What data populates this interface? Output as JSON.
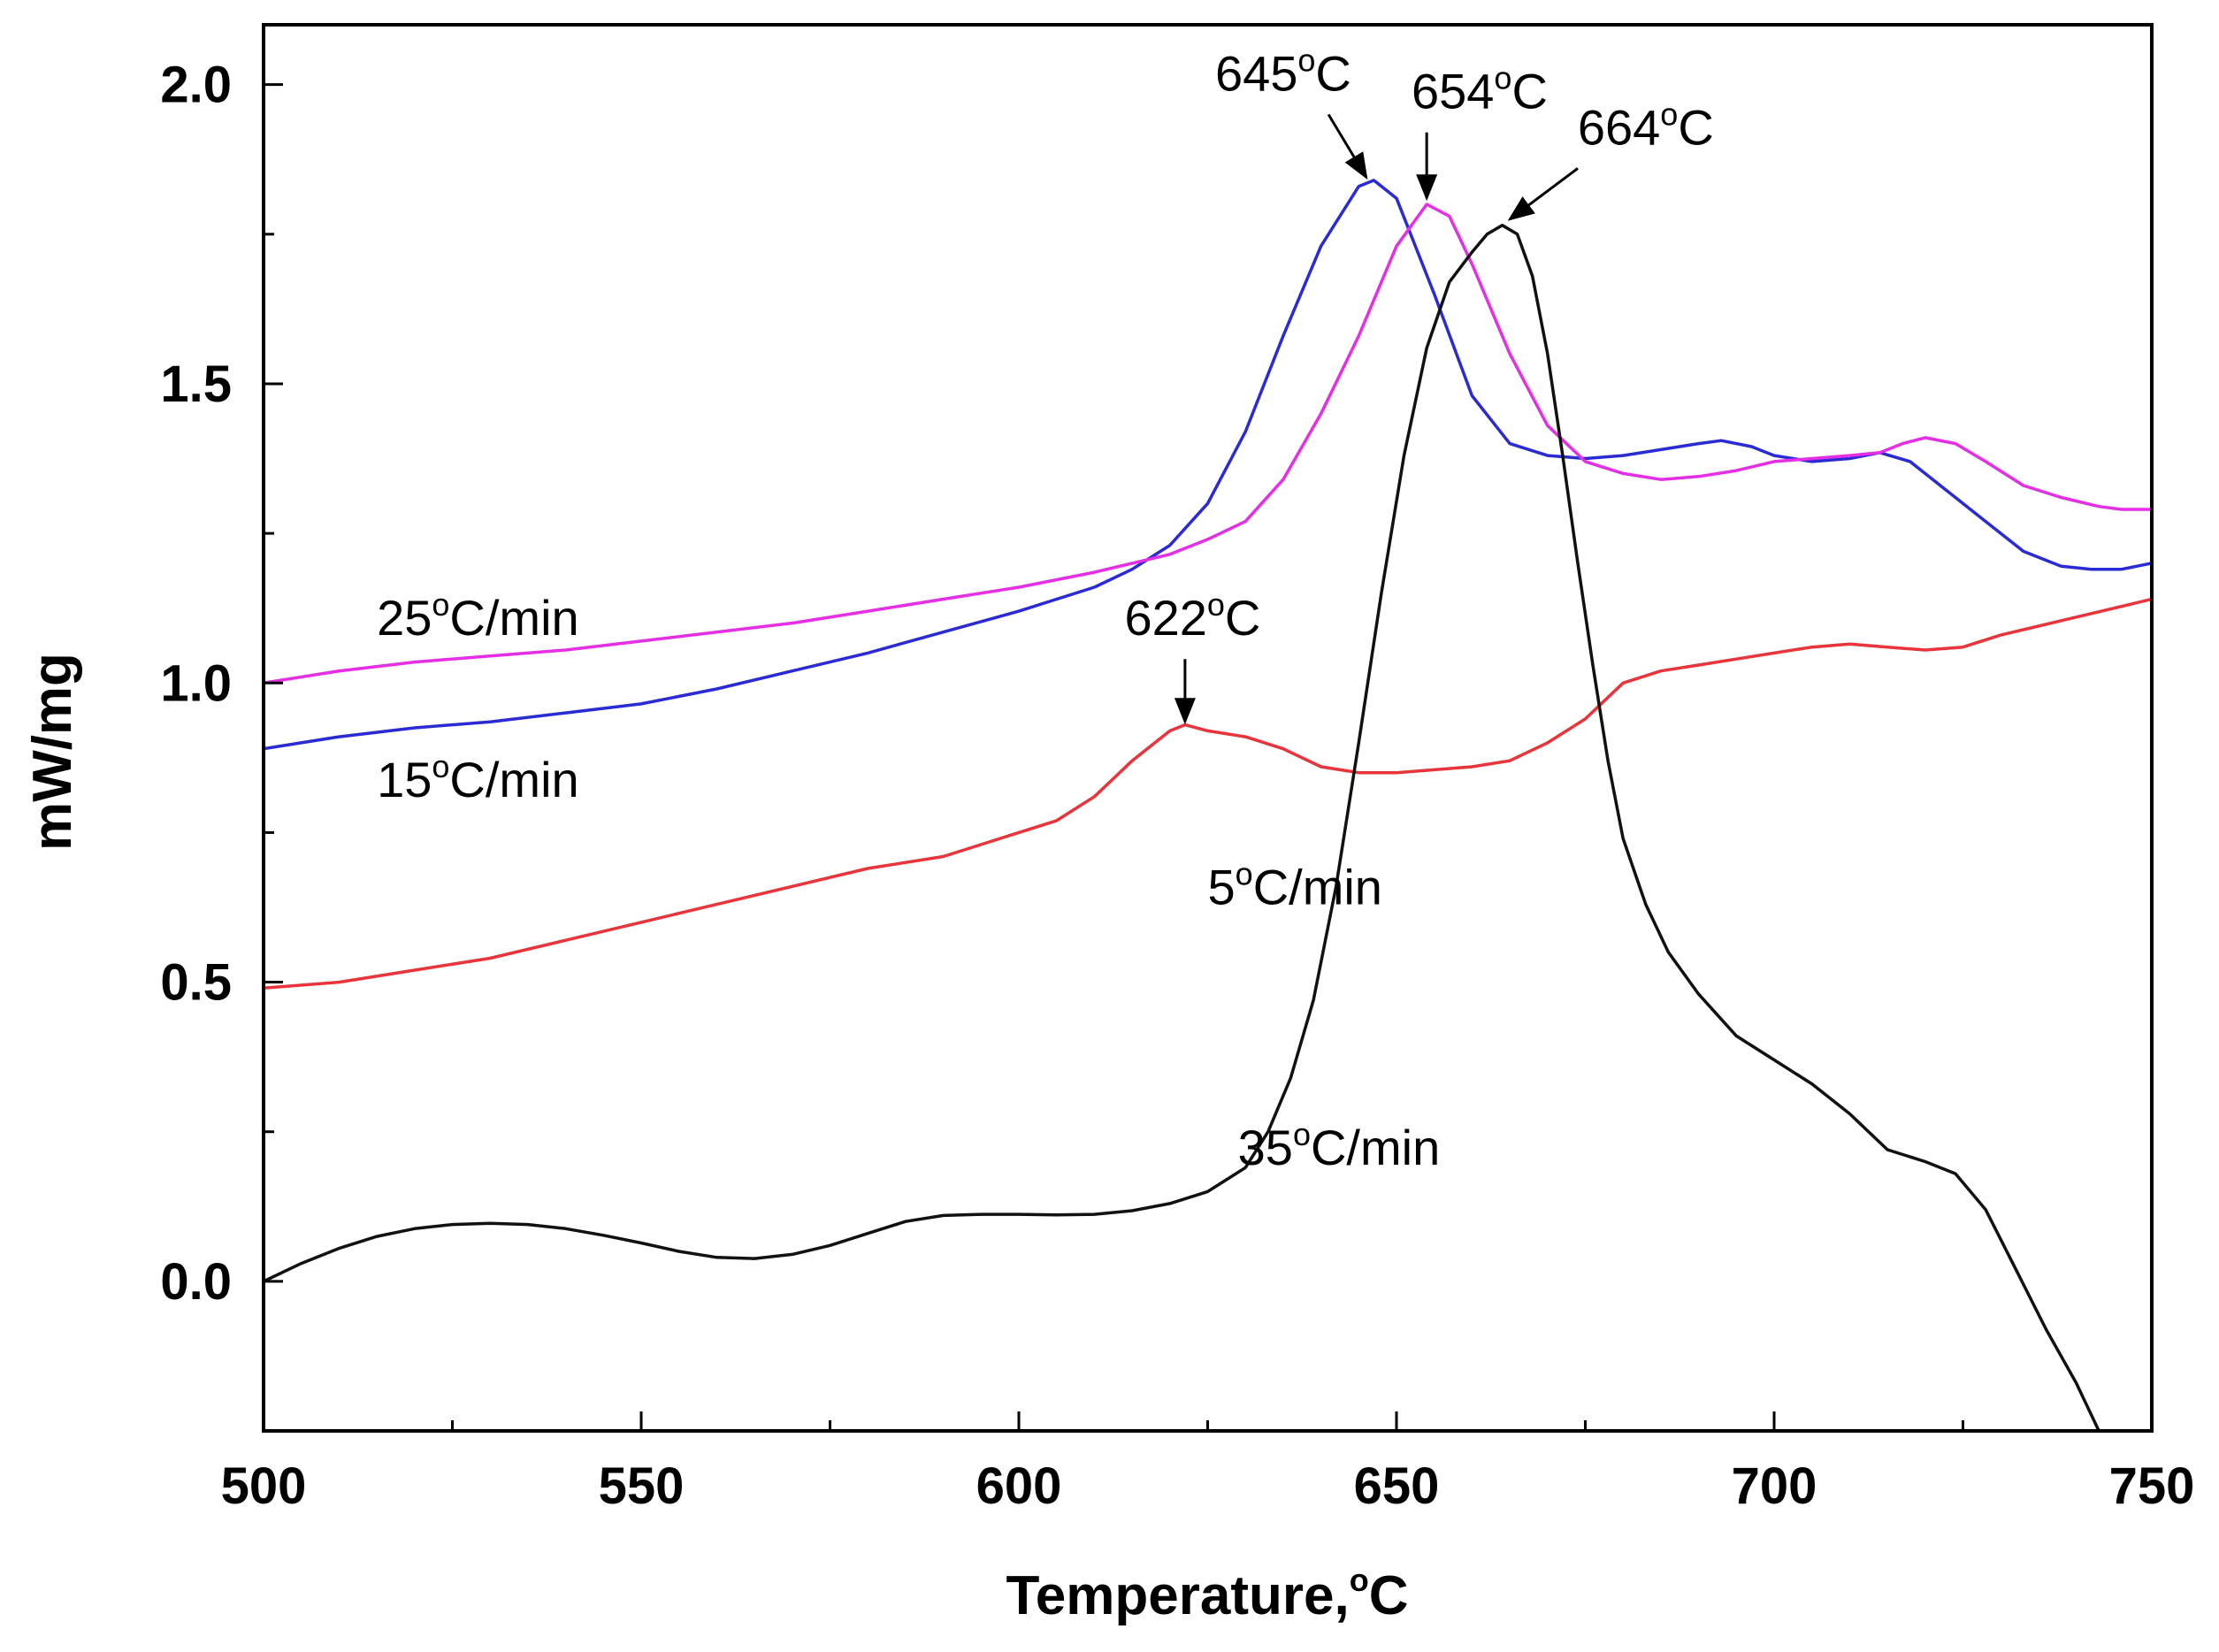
{
  "chart_data": {
    "type": "line",
    "title": "",
    "xlabel": "Temperature,",
    "xlabel_unit": "C",
    "xlabel_unit_sup": "o",
    "ylabel": "mW/mg",
    "xlim": [
      500,
      750
    ],
    "ylim": [
      -0.25,
      2.1
    ],
    "x_ticks": [
      500,
      550,
      600,
      650,
      700,
      750
    ],
    "x_tick_labels": [
      "500",
      "550",
      "600",
      "650",
      "700",
      "750"
    ],
    "y_ticks": [
      0.0,
      0.5,
      1.0,
      1.5,
      2.0
    ],
    "y_tick_labels": [
      "0.0",
      "0.5",
      "1.0",
      "1.5",
      "2.0"
    ],
    "grid": false,
    "series": [
      {
        "name": "5°C/min",
        "label_parts": [
          "5",
          "o",
          "C/min"
        ],
        "color": "#e8343a",
        "points": [
          [
            500,
            0.49
          ],
          [
            510,
            0.5
          ],
          [
            520,
            0.52
          ],
          [
            530,
            0.54
          ],
          [
            540,
            0.57
          ],
          [
            550,
            0.6
          ],
          [
            560,
            0.63
          ],
          [
            570,
            0.66
          ],
          [
            580,
            0.69
          ],
          [
            590,
            0.71
          ],
          [
            600,
            0.75
          ],
          [
            605,
            0.77
          ],
          [
            610,
            0.81
          ],
          [
            615,
            0.87
          ],
          [
            620,
            0.92
          ],
          [
            622,
            0.93
          ],
          [
            625,
            0.92
          ],
          [
            630,
            0.91
          ],
          [
            635,
            0.89
          ],
          [
            640,
            0.86
          ],
          [
            645,
            0.85
          ],
          [
            650,
            0.85
          ],
          [
            655,
            0.855
          ],
          [
            660,
            0.86
          ],
          [
            665,
            0.87
          ],
          [
            670,
            0.9
          ],
          [
            675,
            0.94
          ],
          [
            680,
            1.0
          ],
          [
            685,
            1.02
          ],
          [
            690,
            1.03
          ],
          [
            695,
            1.04
          ],
          [
            700,
            1.05
          ],
          [
            705,
            1.06
          ],
          [
            710,
            1.065
          ],
          [
            715,
            1.06
          ],
          [
            720,
            1.055
          ],
          [
            725,
            1.06
          ],
          [
            730,
            1.08
          ],
          [
            740,
            1.11
          ],
          [
            750,
            1.14
          ]
        ]
      },
      {
        "name": "15°C/min",
        "label_parts": [
          "15",
          "o",
          "C/min"
        ],
        "color": "#2b2bd6",
        "points": [
          [
            500,
            0.89
          ],
          [
            510,
            0.91
          ],
          [
            520,
            0.925
          ],
          [
            530,
            0.935
          ],
          [
            540,
            0.95
          ],
          [
            550,
            0.965
          ],
          [
            560,
            0.99
          ],
          [
            570,
            1.02
          ],
          [
            580,
            1.05
          ],
          [
            590,
            1.085
          ],
          [
            600,
            1.12
          ],
          [
            610,
            1.16
          ],
          [
            615,
            1.19
          ],
          [
            620,
            1.23
          ],
          [
            625,
            1.3
          ],
          [
            630,
            1.42
          ],
          [
            635,
            1.58
          ],
          [
            640,
            1.73
          ],
          [
            645,
            1.83
          ],
          [
            647,
            1.84
          ],
          [
            650,
            1.81
          ],
          [
            655,
            1.65
          ],
          [
            660,
            1.48
          ],
          [
            665,
            1.4
          ],
          [
            670,
            1.38
          ],
          [
            675,
            1.375
          ],
          [
            680,
            1.38
          ],
          [
            685,
            1.39
          ],
          [
            690,
            1.4
          ],
          [
            693,
            1.405
          ],
          [
            697,
            1.395
          ],
          [
            700,
            1.38
          ],
          [
            705,
            1.37
          ],
          [
            710,
            1.375
          ],
          [
            714,
            1.385
          ],
          [
            718,
            1.37
          ],
          [
            722,
            1.33
          ],
          [
            728,
            1.27
          ],
          [
            733,
            1.22
          ],
          [
            738,
            1.195
          ],
          [
            742,
            1.19
          ],
          [
            746,
            1.19
          ],
          [
            750,
            1.2
          ]
        ]
      },
      {
        "name": "25°C/min",
        "label_parts": [
          "25",
          "o",
          "C/min"
        ],
        "color": "#e62ee6",
        "points": [
          [
            500,
            1.0
          ],
          [
            510,
            1.02
          ],
          [
            520,
            1.035
          ],
          [
            530,
            1.045
          ],
          [
            540,
            1.055
          ],
          [
            550,
            1.07
          ],
          [
            560,
            1.085
          ],
          [
            570,
            1.1
          ],
          [
            580,
            1.12
          ],
          [
            590,
            1.14
          ],
          [
            600,
            1.16
          ],
          [
            610,
            1.185
          ],
          [
            615,
            1.2
          ],
          [
            620,
            1.215
          ],
          [
            625,
            1.24
          ],
          [
            630,
            1.27
          ],
          [
            635,
            1.34
          ],
          [
            640,
            1.45
          ],
          [
            645,
            1.58
          ],
          [
            650,
            1.73
          ],
          [
            654,
            1.8
          ],
          [
            657,
            1.78
          ],
          [
            660,
            1.7
          ],
          [
            665,
            1.55
          ],
          [
            670,
            1.43
          ],
          [
            675,
            1.37
          ],
          [
            680,
            1.35
          ],
          [
            685,
            1.34
          ],
          [
            690,
            1.345
          ],
          [
            695,
            1.355
          ],
          [
            700,
            1.37
          ],
          [
            705,
            1.375
          ],
          [
            710,
            1.38
          ],
          [
            714,
            1.385
          ],
          [
            717,
            1.4
          ],
          [
            720,
            1.41
          ],
          [
            724,
            1.4
          ],
          [
            728,
            1.37
          ],
          [
            733,
            1.33
          ],
          [
            738,
            1.31
          ],
          [
            743,
            1.295
          ],
          [
            746,
            1.29
          ],
          [
            750,
            1.29
          ]
        ]
      },
      {
        "name": "35°C/min",
        "label_parts": [
          "35",
          "o",
          "C/min"
        ],
        "color": "#111111",
        "points": [
          [
            500,
            0.0
          ],
          [
            505,
            0.03
          ],
          [
            510,
            0.055
          ],
          [
            515,
            0.075
          ],
          [
            520,
            0.088
          ],
          [
            525,
            0.095
          ],
          [
            530,
            0.097
          ],
          [
            535,
            0.095
          ],
          [
            540,
            0.088
          ],
          [
            545,
            0.077
          ],
          [
            550,
            0.064
          ],
          [
            555,
            0.05
          ],
          [
            560,
            0.04
          ],
          [
            565,
            0.038
          ],
          [
            570,
            0.045
          ],
          [
            575,
            0.06
          ],
          [
            580,
            0.08
          ],
          [
            585,
            0.1
          ],
          [
            590,
            0.11
          ],
          [
            595,
            0.112
          ],
          [
            600,
            0.112
          ],
          [
            605,
            0.111
          ],
          [
            610,
            0.112
          ],
          [
            615,
            0.118
          ],
          [
            620,
            0.13
          ],
          [
            625,
            0.15
          ],
          [
            630,
            0.19
          ],
          [
            633,
            0.25
          ],
          [
            636,
            0.34
          ],
          [
            639,
            0.47
          ],
          [
            642,
            0.66
          ],
          [
            645,
            0.9
          ],
          [
            648,
            1.15
          ],
          [
            651,
            1.38
          ],
          [
            654,
            1.56
          ],
          [
            657,
            1.67
          ],
          [
            660,
            1.72
          ],
          [
            662,
            1.75
          ],
          [
            664,
            1.765
          ],
          [
            666,
            1.75
          ],
          [
            668,
            1.68
          ],
          [
            670,
            1.55
          ],
          [
            672,
            1.38
          ],
          [
            674,
            1.2
          ],
          [
            676,
            1.03
          ],
          [
            678,
            0.87
          ],
          [
            680,
            0.74
          ],
          [
            683,
            0.63
          ],
          [
            686,
            0.55
          ],
          [
            690,
            0.48
          ],
          [
            695,
            0.41
          ],
          [
            700,
            0.37
          ],
          [
            705,
            0.33
          ],
          [
            710,
            0.28
          ],
          [
            715,
            0.22
          ],
          [
            720,
            0.2
          ],
          [
            724,
            0.18
          ],
          [
            728,
            0.12
          ],
          [
            732,
            0.02
          ],
          [
            736,
            -0.08
          ],
          [
            740,
            -0.17
          ],
          [
            743,
            -0.25
          ]
        ]
      }
    ],
    "curve_labels": [
      {
        "series": 0,
        "parts": [
          "5",
          "o",
          "C/min"
        ],
        "x": 625,
        "y": 0.63
      },
      {
        "series": 1,
        "parts": [
          "15",
          "o",
          "C/min"
        ],
        "x": 515,
        "y": 0.81
      },
      {
        "series": 2,
        "parts": [
          "25",
          "o",
          "C/min"
        ],
        "x": 515,
        "y": 1.08
      },
      {
        "series": 3,
        "parts": [
          "35",
          "o",
          "C/min"
        ],
        "x": 629,
        "y": 0.195
      }
    ],
    "annotations": [
      {
        "text_parts": [
          "645",
          "o",
          "C"
        ],
        "label_x": 635,
        "label_y": 1.99,
        "arrow_from": [
          641,
          1.95
        ],
        "arrow_to": [
          646,
          1.845
        ]
      },
      {
        "text_parts": [
          "654",
          "o",
          "C"
        ],
        "label_x": 661,
        "label_y": 1.96,
        "arrow_from": [
          654,
          1.92
        ],
        "arrow_to": [
          654,
          1.81
        ]
      },
      {
        "text_parts": [
          "664",
          "o",
          "C"
        ],
        "label_x": 683,
        "label_y": 1.9,
        "arrow_from": [
          674,
          1.86
        ],
        "arrow_to": [
          665,
          1.775
        ]
      },
      {
        "text_parts": [
          "622",
          "o",
          "C"
        ],
        "label_x": 623,
        "label_y": 1.08,
        "arrow_from": [
          622,
          1.04
        ],
        "arrow_to": [
          622,
          0.935
        ]
      }
    ]
  }
}
